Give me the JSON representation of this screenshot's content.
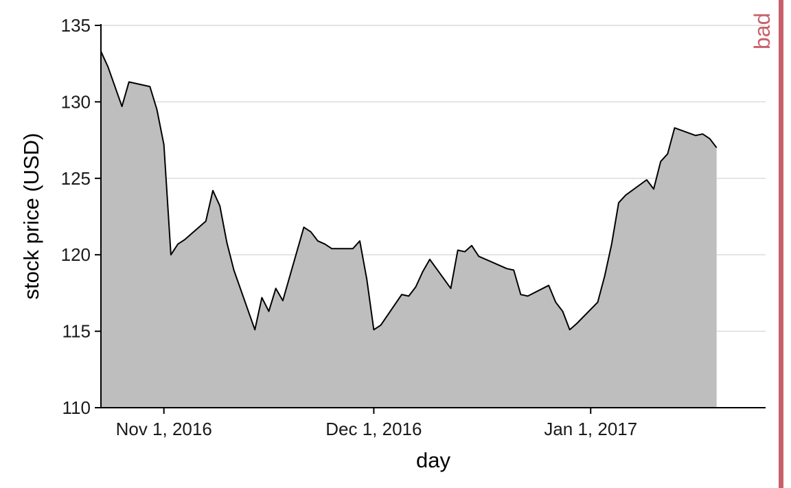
{
  "chart_data": {
    "type": "area",
    "xlabel": "day",
    "ylabel": "stock price (USD)",
    "ylim": [
      110,
      135
    ],
    "xlim": [
      "2016-10-23",
      "2017-01-26"
    ],
    "y_ticks": [
      110,
      115,
      120,
      125,
      130,
      135
    ],
    "x_ticks": [
      {
        "date": "2016-11-01",
        "label": "Nov 1, 2016"
      },
      {
        "date": "2016-12-01",
        "label": "Dec 1, 2016"
      },
      {
        "date": "2017-01-01",
        "label": "Jan 1, 2017"
      }
    ],
    "grid": "horizontal",
    "series": [
      {
        "x": [
          "2016-10-23",
          "2016-10-24",
          "2016-10-25",
          "2016-10-26",
          "2016-10-27",
          "2016-10-30",
          "2016-10-31",
          "2016-11-01",
          "2016-11-02",
          "2016-11-03",
          "2016-11-04",
          "2016-11-07",
          "2016-11-08",
          "2016-11-09",
          "2016-11-10",
          "2016-11-11",
          "2016-11-14",
          "2016-11-15",
          "2016-11-16",
          "2016-11-17",
          "2016-11-18",
          "2016-11-21",
          "2016-11-22",
          "2016-11-23",
          "2016-11-24",
          "2016-11-25",
          "2016-11-28",
          "2016-11-29",
          "2016-11-30",
          "2016-12-01",
          "2016-12-02",
          "2016-12-05",
          "2016-12-06",
          "2016-12-07",
          "2016-12-08",
          "2016-12-09",
          "2016-12-12",
          "2016-12-13",
          "2016-12-14",
          "2016-12-15",
          "2016-12-16",
          "2016-12-19",
          "2016-12-20",
          "2016-12-21",
          "2016-12-22",
          "2016-12-23",
          "2016-12-26",
          "2016-12-27",
          "2016-12-28",
          "2016-12-29",
          "2016-12-30",
          "2017-01-02",
          "2017-01-03",
          "2017-01-04",
          "2017-01-05",
          "2017-01-06",
          "2017-01-09",
          "2017-01-10",
          "2017-01-11",
          "2017-01-12",
          "2017-01-13",
          "2017-01-16",
          "2017-01-17",
          "2017-01-18",
          "2017-01-19"
        ],
        "y": [
          133.3,
          132.3,
          131.0,
          129.7,
          131.3,
          131.0,
          129.5,
          127.2,
          120.0,
          120.7,
          121.0,
          122.2,
          124.2,
          123.2,
          120.8,
          119.0,
          115.1,
          117.2,
          116.3,
          117.8,
          117.0,
          121.8,
          121.5,
          120.9,
          120.7,
          120.4,
          120.4,
          120.9,
          118.4,
          115.1,
          115.4,
          117.4,
          117.3,
          117.9,
          118.9,
          119.7,
          117.8,
          120.3,
          120.2,
          120.6,
          119.9,
          119.3,
          119.1,
          119.0,
          117.4,
          117.3,
          118.0,
          116.9,
          116.3,
          115.1,
          115.5,
          116.9,
          118.6,
          120.7,
          123.4,
          123.9,
          124.9,
          124.3,
          126.1,
          126.6,
          128.3,
          127.8,
          127.9,
          127.6,
          127.0
        ]
      }
    ]
  },
  "side_label": "bad"
}
